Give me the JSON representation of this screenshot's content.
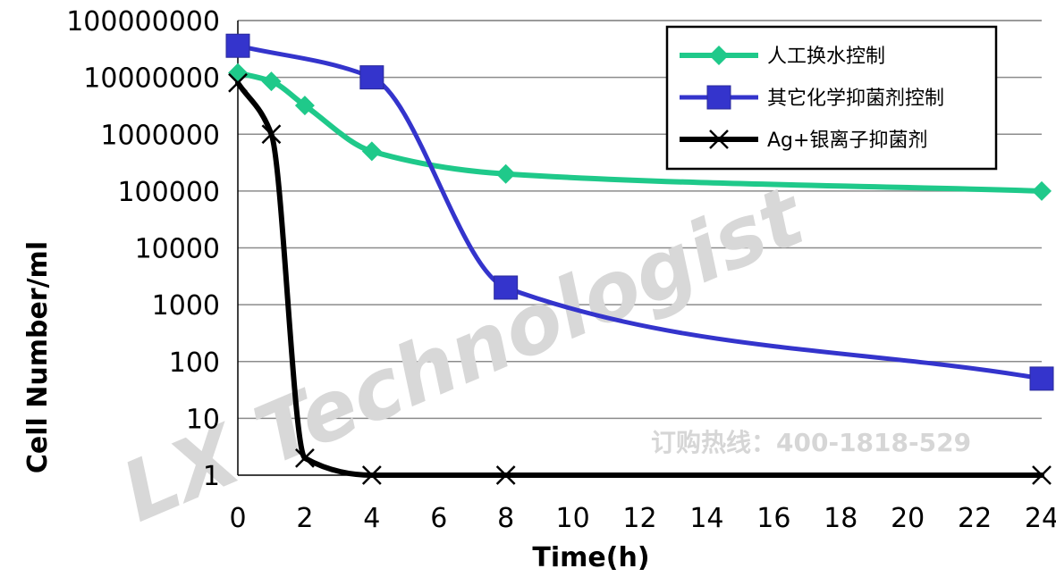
{
  "chart_data": {
    "type": "line",
    "y_scale": "log",
    "ylim": [
      1,
      100000000
    ],
    "xlim": [
      0,
      24
    ],
    "xlabel": "Time(h)",
    "ylabel": "Cell Number/ml",
    "x_ticks": [
      "0",
      "2",
      "4",
      "6",
      "8",
      "10",
      "12",
      "14",
      "16",
      "18",
      "20",
      "22",
      "24"
    ],
    "y_ticks": [
      "1",
      "10",
      "100",
      "1000",
      "10000",
      "100000",
      "1000000",
      "10000000",
      "100000000"
    ],
    "grid": "horizontal",
    "legend_position": "top-right",
    "series": [
      {
        "name": "人工换水控制",
        "marker": "diamond",
        "color": "#1fc98a",
        "x": [
          0,
          1,
          2,
          4,
          8,
          24
        ],
        "y": [
          12000000,
          8500000,
          3200000,
          500000,
          200000,
          100000
        ]
      },
      {
        "name": "其它化学抑菌剂控制",
        "marker": "square",
        "color": "#3434cc",
        "x": [
          0,
          4,
          8,
          24
        ],
        "y": [
          36000000,
          10000000,
          2000,
          50
        ]
      },
      {
        "name": "Ag+银离子抑菌剂",
        "marker": "x",
        "color": "#000000",
        "x": [
          0,
          1,
          2,
          4,
          8,
          24
        ],
        "y": [
          8000000,
          1000000,
          2,
          1,
          1,
          1
        ]
      }
    ]
  },
  "watermark": {
    "brand": "LX Technologist",
    "phone": "订购热线：400-1818-529"
  }
}
